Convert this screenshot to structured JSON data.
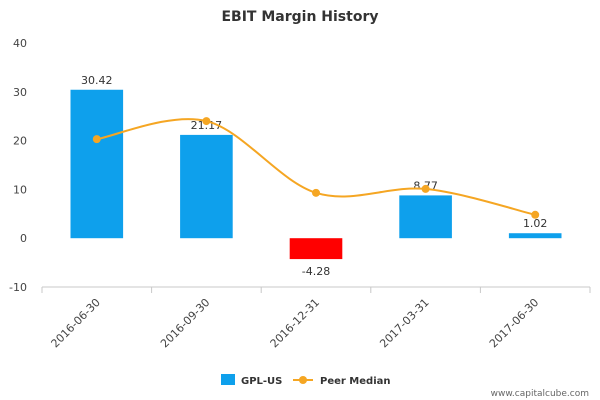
{
  "chart_data": {
    "type": "bar",
    "title": "EBIT Margin History",
    "categories": [
      "2016-06-30",
      "2016-09-30",
      "2016-12-31",
      "2017-03-31",
      "2017-06-30"
    ],
    "series": [
      {
        "name": "GPL-US",
        "type": "bar",
        "values": [
          30.42,
          21.17,
          -4.28,
          8.77,
          1.02
        ],
        "labels": [
          "30.42",
          "21.17",
          "-4.28",
          "8.77",
          "1.02"
        ],
        "color": "#0ea0ec",
        "negative_color": "#ff0000"
      },
      {
        "name": "Peer Median",
        "type": "line",
        "values": [
          20.3,
          24.0,
          9.3,
          10.1,
          4.8
        ],
        "color": "#f5a623"
      }
    ],
    "yticks": [
      "40",
      "30",
      "20",
      "10",
      "0",
      "-10"
    ],
    "ylim": [
      -10,
      40
    ],
    "grid": false,
    "legend_position": "bottom-center"
  },
  "credit": "www.capitalcube.com"
}
